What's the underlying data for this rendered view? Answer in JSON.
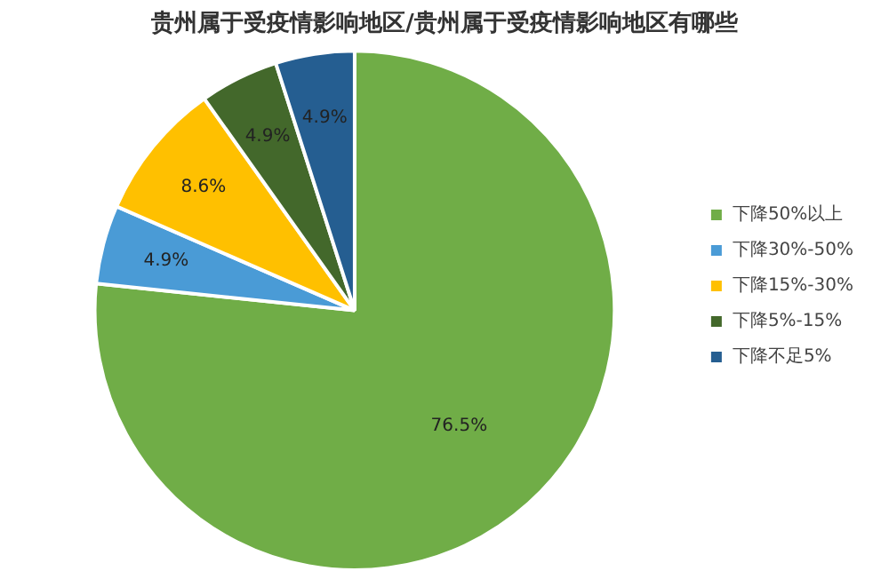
{
  "chart_data": {
    "type": "pie",
    "title": "贵州属于受疫情影响地区/贵州属于受疫情影响地区有哪些",
    "categories": [
      "下降50%以上",
      "下降30%-50%",
      "下降15%-30%",
      "下降5%-15%",
      "下降不足5%"
    ],
    "values": [
      76.5,
      4.9,
      8.6,
      4.9,
      4.9
    ],
    "colors": [
      "#70ad47",
      "#4a9bd6",
      "#ffc000",
      "#43682b",
      "#255e91"
    ],
    "value_labels": [
      "76.5%",
      "4.9%",
      "8.6%",
      "4.9%",
      "4.9%"
    ],
    "legend": "right"
  }
}
